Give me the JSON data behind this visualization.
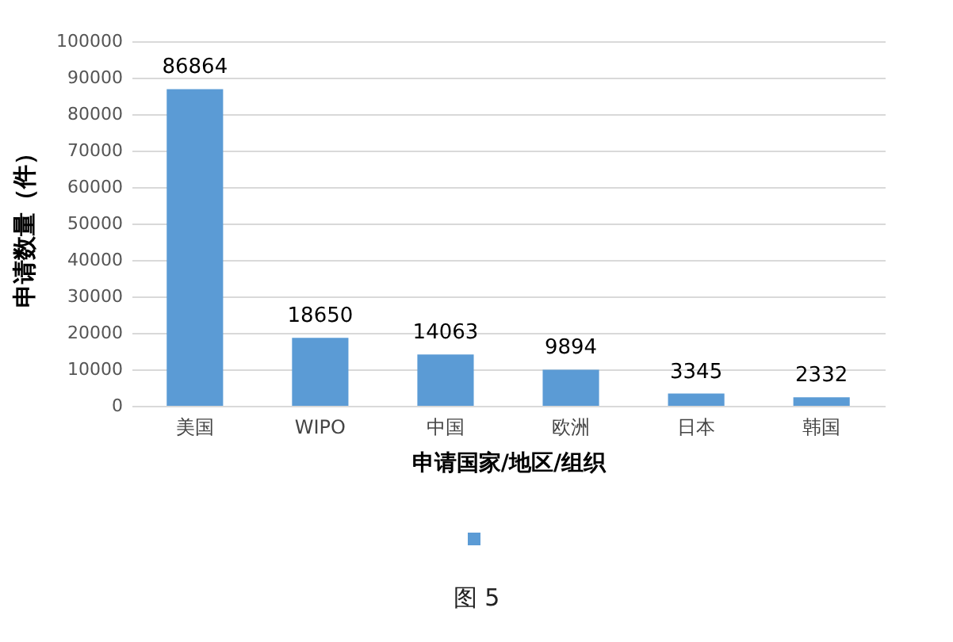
{
  "chart_data": {
    "type": "bar",
    "xlabel": "申请国家/地区/组织",
    "ylabel": "申请数量（件）",
    "categories": [
      "美国",
      "WIPO",
      "中国",
      "欧洲",
      "日本",
      "韩国"
    ],
    "series": [
      {
        "color": "#5b9bd5",
        "values": [
          86864,
          18650,
          14063,
          9894,
          3345,
          2332
        ]
      }
    ],
    "ylim": [
      0,
      100000
    ],
    "yticks": [
      0,
      10000,
      20000,
      30000,
      40000,
      50000,
      60000,
      70000,
      80000,
      90000,
      100000
    ],
    "grid": "y",
    "data_labels": true,
    "annotations": [
      "图 5"
    ]
  }
}
